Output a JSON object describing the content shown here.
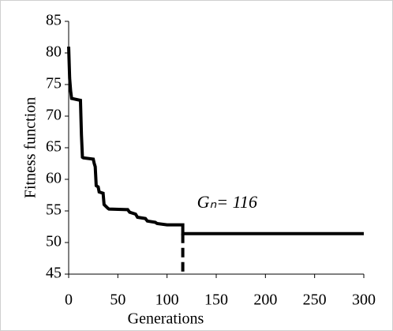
{
  "chart_data": {
    "type": "line",
    "xlabel": "Generations",
    "ylabel": "Fitness function",
    "x": [
      0,
      1,
      2,
      3,
      12,
      13,
      14,
      15,
      25,
      26,
      27,
      28,
      30,
      31,
      35,
      36,
      40,
      41,
      60,
      62,
      68,
      70,
      78,
      80,
      88,
      90,
      100,
      116,
      116,
      300
    ],
    "series": [
      {
        "color": "#000000",
        "values": [
          81,
          76,
          74,
          72.8,
          72.5,
          67,
          63.5,
          63.4,
          63.2,
          62.5,
          62,
          59,
          58.8,
          58,
          57.8,
          56,
          55.4,
          55.3,
          55.2,
          54.8,
          54.5,
          54,
          53.8,
          53.4,
          53.2,
          53,
          52.8,
          52.8,
          51.4,
          51.4
        ]
      }
    ],
    "xlim": [
      0,
      300
    ],
    "xticks": [
      0,
      50,
      100,
      150,
      200,
      250,
      300
    ],
    "ylim": [
      45,
      85
    ],
    "yticks": [
      45,
      50,
      55,
      60,
      65,
      70,
      75,
      80,
      85
    ],
    "marker": {
      "x": 116,
      "label": "Gₙ= 116"
    }
  }
}
